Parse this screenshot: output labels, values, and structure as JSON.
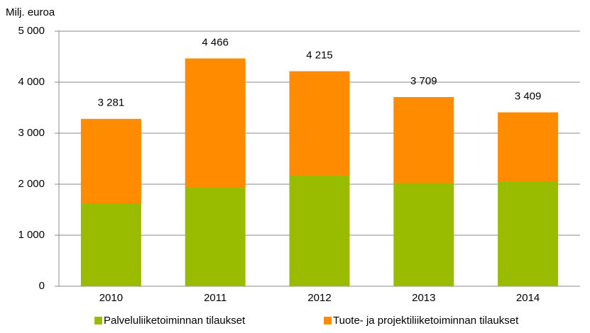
{
  "chart_data": {
    "type": "stacked_bar",
    "y_label": "Milj. euroa",
    "categories": [
      "2010",
      "2011",
      "2012",
      "2013",
      "2014"
    ],
    "series": [
      {
        "name": "Palveluliiketoiminnan tilaukset",
        "color": "#99bb00",
        "values": [
          1625,
          1944,
          2167,
          2028,
          2056
        ]
      },
      {
        "name": "Tuote- ja projektiliiketoiminnan tilaukset",
        "color": "#ff8c00",
        "values": [
          1656,
          2522,
          2048,
          1681,
          1353
        ]
      }
    ],
    "totals": [
      3281,
      4466,
      4215,
      3709,
      3409
    ],
    "total_labels": [
      "3 281",
      "4 466",
      "4 215",
      "3 709",
      "3 409"
    ],
    "ylim": [
      0,
      5000
    ],
    "yticks": [
      0,
      {
        "value": 1000,
        "label": "1 000"
      },
      {
        "value": 2000,
        "label": "2 000"
      },
      {
        "value": 3000,
        "label": "3 000"
      },
      {
        "value": 4000,
        "label": "4 000"
      },
      {
        "value": 5000,
        "label": "5 000"
      }
    ],
    "grid": true,
    "legend": "bottom"
  }
}
